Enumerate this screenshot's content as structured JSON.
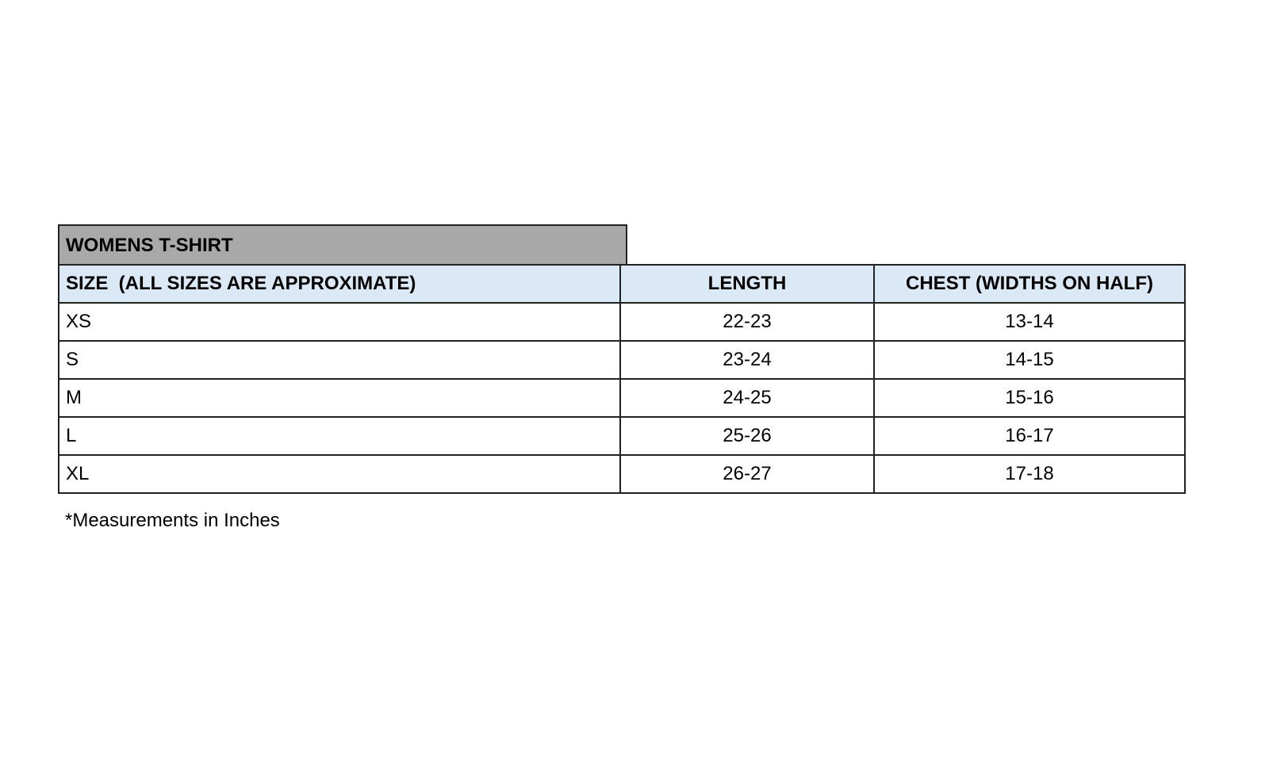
{
  "title": "WOMENS T-SHIRT",
  "headers": [
    "SIZE  (ALL SIZES ARE APPROXIMATE)",
    "LENGTH",
    "CHEST (WIDTHS ON HALF)"
  ],
  "rows": [
    [
      "XS",
      "22-23",
      "13-14"
    ],
    [
      "S",
      "23-24",
      "14-15"
    ],
    [
      "M",
      "24-25",
      "15-16"
    ],
    [
      "L",
      "25-26",
      "16-17"
    ],
    [
      "XL",
      "26-27",
      "17-18"
    ]
  ],
  "footnote": "*Measurements in Inches",
  "colors": {
    "title_bg": "#a9a9a9",
    "header_bg": "#dbe8f6"
  }
}
